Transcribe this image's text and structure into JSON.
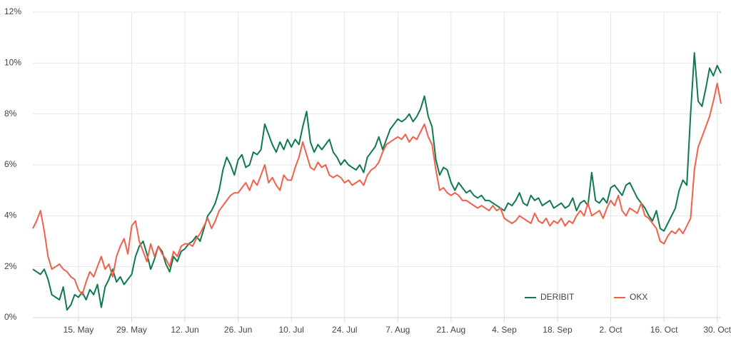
{
  "chart_data": {
    "type": "line",
    "categories": [
      null,
      null,
      null,
      null,
      null,
      null,
      null,
      null,
      null,
      null,
      null,
      null,
      "15. May",
      null,
      null,
      null,
      null,
      null,
      null,
      null,
      null,
      null,
      null,
      null,
      null,
      null,
      "29. May",
      null,
      null,
      null,
      null,
      null,
      null,
      null,
      null,
      null,
      null,
      null,
      null,
      null,
      "12. Jun",
      null,
      null,
      null,
      null,
      null,
      null,
      null,
      null,
      null,
      null,
      null,
      null,
      null,
      "26. Jun",
      null,
      null,
      null,
      null,
      null,
      null,
      null,
      null,
      null,
      null,
      null,
      null,
      null,
      "10. Jul",
      null,
      null,
      null,
      null,
      null,
      null,
      null,
      null,
      null,
      null,
      null,
      null,
      null,
      "24. Jul",
      null,
      null,
      null,
      null,
      null,
      null,
      null,
      null,
      null,
      null,
      null,
      null,
      null,
      "7. Aug",
      null,
      null,
      null,
      null,
      null,
      null,
      null,
      null,
      null,
      null,
      null,
      null,
      null,
      "21. Aug",
      null,
      null,
      null,
      null,
      null,
      null,
      null,
      null,
      null,
      null,
      null,
      null,
      null,
      "4. Sep",
      null,
      null,
      null,
      null,
      null,
      null,
      null,
      null,
      null,
      null,
      null,
      null,
      null,
      "18. Sep",
      null,
      null,
      null,
      null,
      null,
      null,
      null,
      null,
      null,
      null,
      null,
      null,
      null,
      "2. Oct",
      null,
      null,
      null,
      null,
      null,
      null,
      null,
      null,
      null,
      null,
      null,
      null,
      null,
      "16. Oct",
      null,
      null,
      null,
      null,
      null,
      null,
      null,
      null,
      null,
      null,
      null,
      null,
      null,
      "30. Oct",
      null
    ],
    "series": [
      {
        "name": "DERIBIT",
        "color": "#0f7a4c",
        "values": [
          1.9,
          1.8,
          1.7,
          1.9,
          1.5,
          0.9,
          0.8,
          0.7,
          1.2,
          0.3,
          0.5,
          0.9,
          0.8,
          1.0,
          0.7,
          1.1,
          0.9,
          1.3,
          0.4,
          1.2,
          1.5,
          1.9,
          1.4,
          1.6,
          1.3,
          1.5,
          1.7,
          2.4,
          2.8,
          3.0,
          2.5,
          1.9,
          2.3,
          2.8,
          2.6,
          2.1,
          1.8,
          2.4,
          2.2,
          2.6,
          2.7,
          2.9,
          3.0,
          3.2,
          3.0,
          3.5,
          4.0,
          4.2,
          4.5,
          5.0,
          5.8,
          6.3,
          6.0,
          5.6,
          6.2,
          6.4,
          5.9,
          6.0,
          6.5,
          6.4,
          6.6,
          7.6,
          7.2,
          6.8,
          6.5,
          6.9,
          6.6,
          7.0,
          6.7,
          7.0,
          6.8,
          7.5,
          8.1,
          6.9,
          6.5,
          6.8,
          6.6,
          6.8,
          7.0,
          6.5,
          6.3,
          6.0,
          6.2,
          6.0,
          5.9,
          5.8,
          6.0,
          5.7,
          6.3,
          6.5,
          6.7,
          7.1,
          6.6,
          7.0,
          7.4,
          7.6,
          7.8,
          7.7,
          7.8,
          8.0,
          7.7,
          7.9,
          8.2,
          8.7,
          7.9,
          7.5,
          6.2,
          5.6,
          5.9,
          5.8,
          5.3,
          5.0,
          5.3,
          5.1,
          4.9,
          5.0,
          4.8,
          4.7,
          4.8,
          4.6,
          4.6,
          4.5,
          4.4,
          4.3,
          4.2,
          4.5,
          4.4,
          4.6,
          4.9,
          4.5,
          4.4,
          4.8,
          4.6,
          4.7,
          4.4,
          4.5,
          4.6,
          4.3,
          4.4,
          4.5,
          4.3,
          4.4,
          4.7,
          4.2,
          4.5,
          4.6,
          4.4,
          5.7,
          4.6,
          4.5,
          4.7,
          4.5,
          5.1,
          5.2,
          5.0,
          4.8,
          5.2,
          5.3,
          5.0,
          4.7,
          4.5,
          4.3,
          4.0,
          3.8,
          4.2,
          3.5,
          3.4,
          3.7,
          4.0,
          4.3,
          5.0,
          5.4,
          5.2,
          8.0,
          10.4,
          8.5,
          8.3,
          9.0,
          9.8,
          9.5,
          9.9,
          9.6
        ]
      },
      {
        "name": "OKX",
        "color": "#f0604a",
        "values": [
          3.5,
          3.8,
          4.2,
          3.4,
          2.4,
          1.9,
          2.0,
          2.1,
          1.9,
          1.8,
          1.6,
          1.5,
          1.1,
          0.9,
          1.4,
          1.8,
          1.6,
          2.0,
          2.4,
          1.9,
          2.1,
          1.6,
          2.4,
          2.8,
          3.1,
          2.5,
          3.6,
          3.8,
          3.0,
          2.6,
          2.2,
          2.9,
          2.4,
          2.8,
          2.5,
          2.3,
          2.0,
          2.6,
          2.4,
          2.8,
          2.9,
          2.9,
          2.8,
          3.1,
          3.3,
          3.6,
          3.9,
          3.5,
          3.8,
          4.2,
          4.4,
          4.6,
          4.8,
          4.9,
          4.9,
          5.1,
          5.3,
          5.0,
          5.4,
          5.2,
          5.6,
          6.0,
          5.3,
          5.5,
          5.2,
          5.0,
          5.6,
          5.4,
          5.4,
          5.9,
          6.3,
          6.9,
          6.4,
          5.9,
          5.8,
          6.1,
          5.9,
          6.0,
          5.6,
          5.5,
          5.6,
          5.5,
          5.3,
          5.4,
          5.2,
          5.3,
          5.4,
          5.2,
          5.6,
          5.8,
          5.9,
          6.1,
          6.5,
          6.8,
          6.9,
          7.0,
          7.1,
          7.0,
          7.2,
          6.9,
          7.1,
          7.0,
          7.3,
          7.6,
          7.1,
          6.8,
          5.8,
          5.0,
          5.1,
          4.9,
          4.8,
          4.9,
          4.8,
          4.6,
          4.6,
          4.5,
          4.4,
          4.3,
          4.4,
          4.3,
          4.2,
          4.4,
          4.2,
          4.3,
          3.9,
          3.8,
          3.7,
          3.8,
          4.0,
          3.9,
          3.8,
          3.7,
          4.1,
          3.8,
          3.7,
          3.9,
          3.6,
          3.8,
          3.7,
          3.9,
          3.6,
          3.8,
          3.7,
          4.0,
          4.2,
          4.0,
          4.5,
          4.0,
          4.1,
          4.2,
          3.9,
          4.3,
          4.6,
          4.4,
          4.8,
          4.2,
          4.0,
          4.3,
          4.2,
          4.1,
          4.5,
          4.0,
          3.9,
          3.7,
          3.5,
          3.0,
          2.9,
          3.2,
          3.4,
          3.3,
          3.5,
          3.3,
          3.6,
          3.9,
          5.8,
          6.7,
          7.1,
          7.5,
          7.9,
          8.5,
          9.2,
          8.4
        ]
      }
    ],
    "ylim": [
      0,
      12
    ],
    "yticks": [
      {
        "value": 0,
        "label": "0%"
      },
      {
        "value": 2,
        "label": "2%"
      },
      {
        "value": 4,
        "label": "4%"
      },
      {
        "value": 6,
        "label": "6%"
      },
      {
        "value": 8,
        "label": "8%"
      },
      {
        "value": 10,
        "label": "10%"
      },
      {
        "value": 12,
        "label": "12%"
      }
    ],
    "grid": true,
    "legend": "bottom-right"
  }
}
